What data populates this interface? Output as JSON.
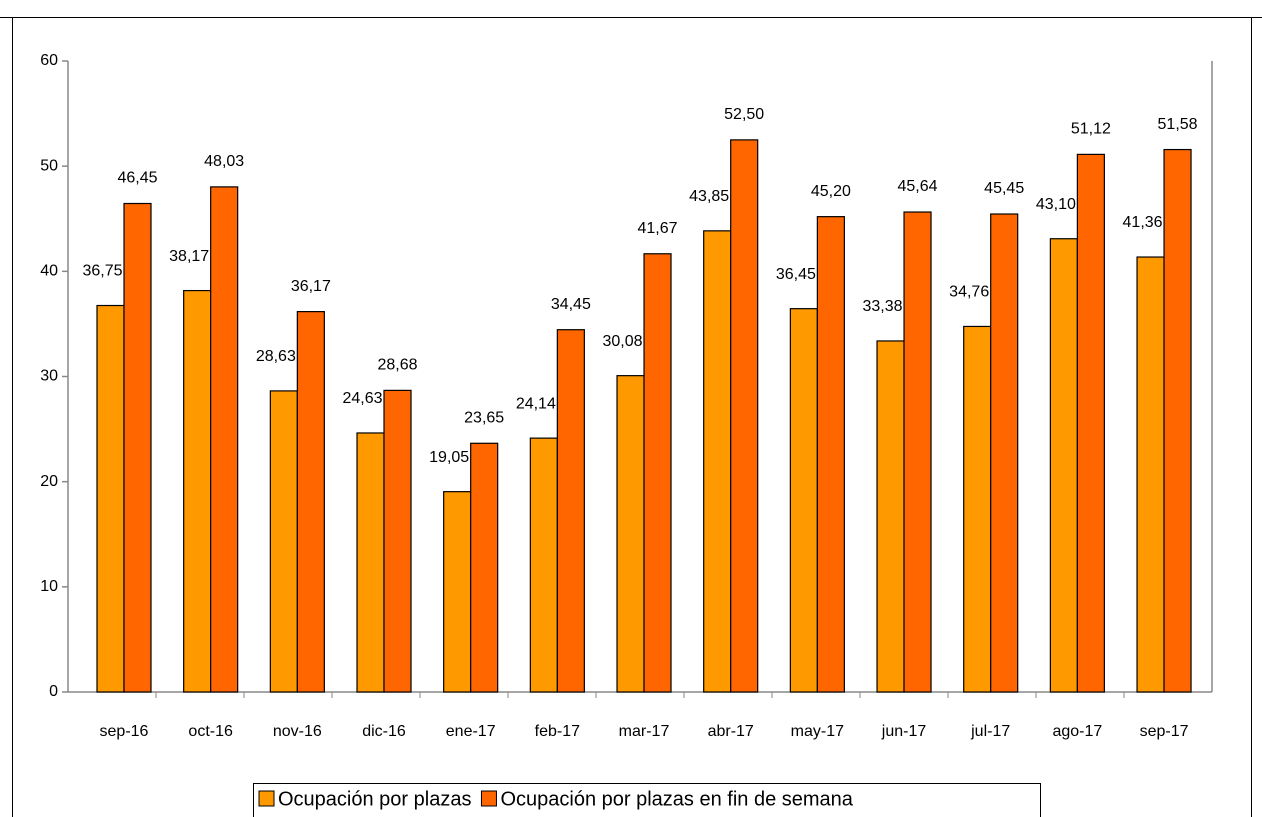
{
  "chart_data": {
    "type": "bar",
    "categories": [
      "sep-16",
      "oct-16",
      "nov-16",
      "dic-16",
      "ene-17",
      "feb-17",
      "mar-17",
      "abr-17",
      "may-17",
      "jun-17",
      "jul-17",
      "ago-17",
      "sep-17"
    ],
    "series": [
      {
        "name": "Ocupación por plazas",
        "color": "#FF9900",
        "values": [
          36.75,
          38.17,
          28.63,
          24.63,
          19.05,
          24.14,
          30.08,
          43.85,
          36.45,
          33.38,
          34.76,
          43.1,
          41.36
        ],
        "value_labels": [
          "36,75",
          "38,17",
          "28,63",
          "24,63",
          "19,05",
          "24,14",
          "30,08",
          "43,85",
          "36,45",
          "33,38",
          "34,76",
          "43,10",
          "41,36"
        ]
      },
      {
        "name": "Ocupación por plazas en fin de semana",
        "color": "#FF6600",
        "values": [
          46.45,
          48.03,
          36.17,
          28.68,
          23.65,
          34.45,
          41.67,
          52.5,
          45.2,
          45.64,
          45.45,
          51.12,
          51.58
        ],
        "value_labels": [
          "46,45",
          "48,03",
          "36,17",
          "28,68",
          "23,65",
          "34,45",
          "41,67",
          "52,50",
          "45,20",
          "45,64",
          "45,45",
          "51,12",
          "51,58"
        ]
      }
    ],
    "ylim": [
      0,
      60
    ],
    "yticks": [
      0,
      10,
      20,
      30,
      40,
      50,
      60
    ],
    "grid": false,
    "legend": "bottom"
  }
}
